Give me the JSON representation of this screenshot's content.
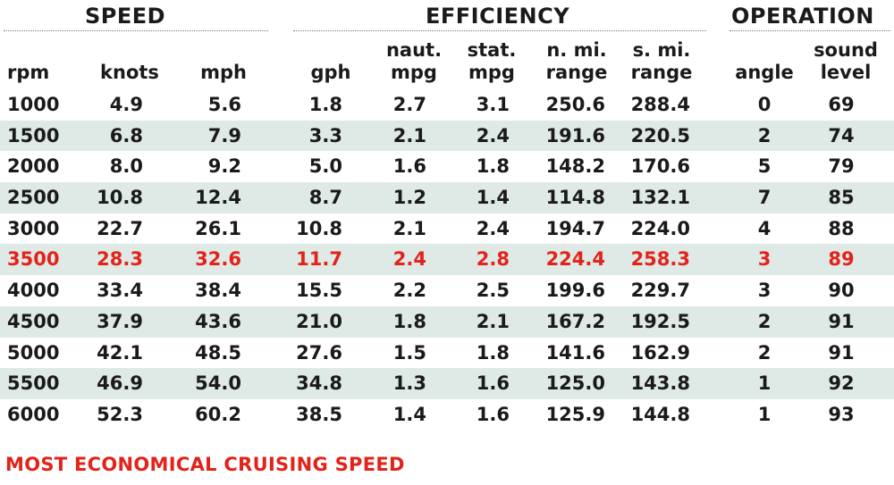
{
  "chart_data": {
    "type": "table",
    "groups": [
      {
        "label": "SPEED"
      },
      {
        "label": "EFFICIENCY"
      },
      {
        "label": "OPERATION"
      }
    ],
    "columns": [
      {
        "key": "rpm",
        "label": "rpm"
      },
      {
        "key": "knots",
        "label": "knots"
      },
      {
        "key": "mph",
        "label": "mph"
      },
      {
        "key": "gph",
        "label": "gph"
      },
      {
        "key": "naut_mpg",
        "label": "naut.\nmpg"
      },
      {
        "key": "stat_mpg",
        "label": "stat.\nmpg"
      },
      {
        "key": "n_mi_range",
        "label": "n. mi.\nrange"
      },
      {
        "key": "s_mi_range",
        "label": "s. mi.\nrange"
      },
      {
        "key": "angle",
        "label": "angle"
      },
      {
        "key": "sound_level",
        "label": "sound\nlevel"
      }
    ],
    "rows": [
      [
        "1000",
        "4.9",
        "5.6",
        "1.8",
        "2.7",
        "3.1",
        "250.6",
        "288.4",
        "0",
        "69"
      ],
      [
        "1500",
        "6.8",
        "7.9",
        "3.3",
        "2.1",
        "2.4",
        "191.6",
        "220.5",
        "2",
        "74"
      ],
      [
        "2000",
        "8.0",
        "9.2",
        "5.0",
        "1.6",
        "1.8",
        "148.2",
        "170.6",
        "5",
        "79"
      ],
      [
        "2500",
        "10.8",
        "12.4",
        "8.7",
        "1.2",
        "1.4",
        "114.8",
        "132.1",
        "7",
        "85"
      ],
      [
        "3000",
        "22.7",
        "26.1",
        "10.8",
        "2.1",
        "2.4",
        "194.7",
        "224.0",
        "4",
        "88"
      ],
      [
        "3500",
        "28.3",
        "32.6",
        "11.7",
        "2.4",
        "2.8",
        "224.4",
        "258.3",
        "3",
        "89"
      ],
      [
        "4000",
        "33.4",
        "38.4",
        "15.5",
        "2.2",
        "2.5",
        "199.6",
        "229.7",
        "3",
        "90"
      ],
      [
        "4500",
        "37.9",
        "43.6",
        "21.0",
        "1.8",
        "2.1",
        "167.2",
        "192.5",
        "2",
        "91"
      ],
      [
        "5000",
        "42.1",
        "48.5",
        "27.6",
        "1.5",
        "1.8",
        "141.6",
        "162.9",
        "2",
        "91"
      ],
      [
        "5500",
        "46.9",
        "54.0",
        "34.8",
        "1.3",
        "1.6",
        "125.0",
        "143.8",
        "1",
        "92"
      ],
      [
        "6000",
        "52.3",
        "60.2",
        "38.5",
        "1.4",
        "1.6",
        "125.9",
        "144.8",
        "1",
        "93"
      ]
    ],
    "highlight_row": 5,
    "highlight_color": "#e2231a",
    "stripe_color": "#dfe9e5",
    "text_color": "#1a1a1a",
    "footnote": "MOST ECONOMICAL CRUISING SPEED"
  }
}
